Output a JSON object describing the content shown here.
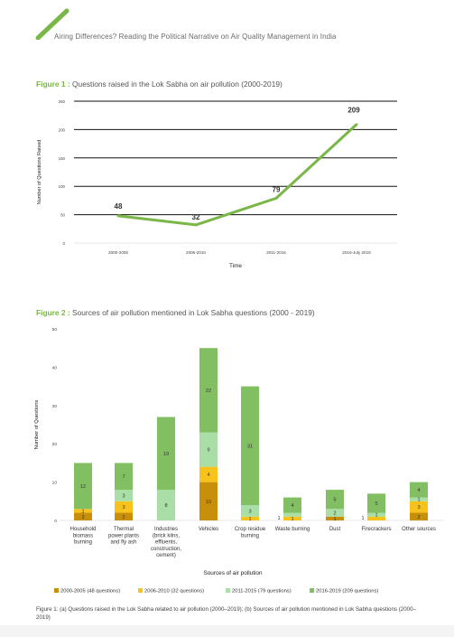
{
  "header": {
    "title": "Airing Differences? Reading the Political Narrative on Air Quality Management in India",
    "accent": "#7ab648"
  },
  "figure1": {
    "label": "Figure 1 :",
    "title": "Questions raised in the Lok Sabha on air pollution (2000-2019)"
  },
  "figure2": {
    "label": "Figure 2 :",
    "title": "Sources of air pollution mentioned in Lok Sabha questions (2000 - 2019)"
  },
  "chart_data": [
    {
      "type": "line",
      "categories": [
        "2000-2005",
        "2006-2010",
        "2011-2015",
        "2016-July 2019"
      ],
      "series": [
        {
          "values": [
            48,
            32,
            79,
            209
          ]
        }
      ],
      "data_labels": [
        "48",
        "32",
        "79",
        "209"
      ],
      "xlabel": "Time",
      "ylabel": "Number of Questions Raised",
      "ylim": [
        0,
        250
      ],
      "yticks": [
        0,
        50,
        100,
        150,
        200,
        250
      ],
      "grid": true,
      "color": "#7ab648"
    },
    {
      "type": "bar",
      "stacked": true,
      "categories": [
        [
          "Household",
          "biomass",
          "burning"
        ],
        [
          "Thermal",
          "power plants",
          "and fly ash"
        ],
        [
          "Industries",
          "(brick kilns,",
          "effluents,",
          "construction,",
          "cement)"
        ],
        [
          "Vehicles"
        ],
        [
          "Crop residue",
          "burning"
        ],
        [
          "Waste burning"
        ],
        [
          "Dust"
        ],
        [
          "Firecrackers"
        ],
        [
          "Other sources"
        ]
      ],
      "series": [
        {
          "name": "2000-2005 (48 questions)",
          "color": "#c8900a",
          "values": [
            2,
            2,
            0,
            10,
            0,
            0,
            1,
            0,
            2
          ]
        },
        {
          "name": "2006-2010 (32 questions)",
          "color": "#f7c21b",
          "values": [
            1,
            3,
            0,
            4,
            1,
            1,
            0,
            1,
            3
          ]
        },
        {
          "name": "2011-2015 (79 questions)",
          "color": "#a9dfa6",
          "values": [
            0,
            3,
            8,
            9,
            3,
            1,
            2,
            1,
            1
          ]
        },
        {
          "name": "2016-2019 (209 questions)",
          "color": "#82bf63",
          "values": [
            12,
            7,
            19,
            22,
            31,
            4,
            5,
            5,
            4
          ]
        }
      ],
      "segment_labels": [
        [
          "2",
          "1",
          "",
          "12"
        ],
        [
          "2",
          "3",
          "3",
          "7"
        ],
        [
          "",
          "",
          "8",
          "19"
        ],
        [
          "10",
          "4",
          "9",
          "22"
        ],
        [
          "",
          "1",
          "3",
          "31"
        ],
        [
          "",
          "1",
          "",
          "4"
        ],
        [
          "1",
          "",
          "2",
          "5"
        ],
        [
          "",
          "",
          "1",
          "5"
        ],
        [
          "2",
          "3",
          "1",
          "4"
        ]
      ],
      "outside_labels": [
        "",
        "",
        "",
        "",
        "",
        "1",
        "",
        "1",
        ""
      ],
      "xlabel": "Sources of air pollution",
      "ylabel": "Number of Questions",
      "ylim": [
        0,
        50
      ],
      "yticks": [
        0,
        10,
        20,
        30,
        40,
        50
      ]
    }
  ],
  "caption": "Figure 1: (a) Questions raised in the Lok Sabha related to air pollution (2000–2019); (b) Sources of air pollution mentioned in Lok Sabha questions (2000–2019)"
}
